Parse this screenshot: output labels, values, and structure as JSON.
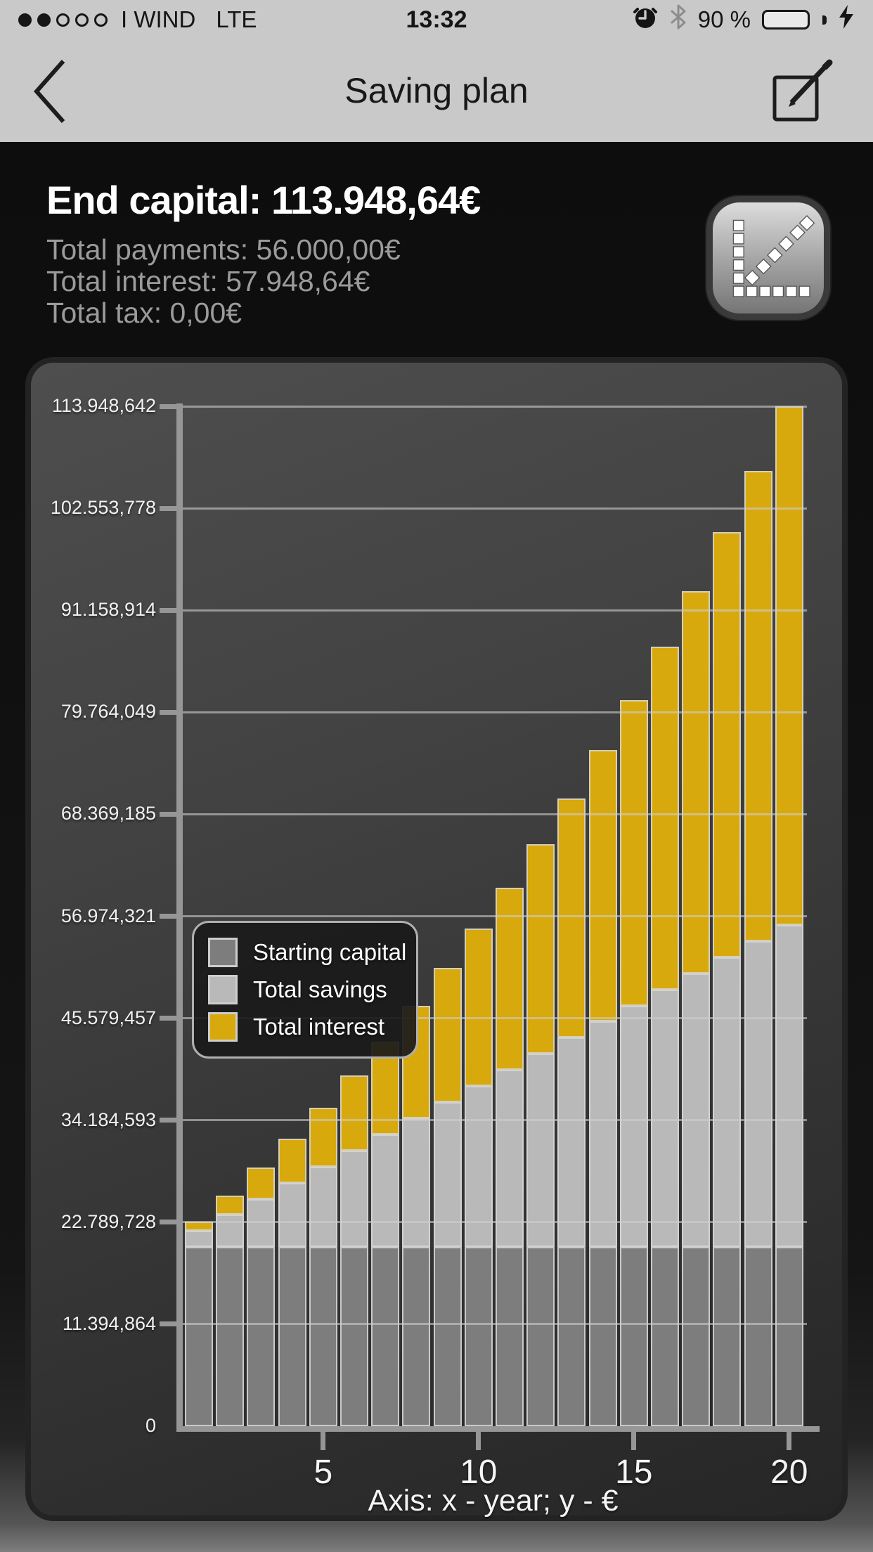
{
  "status_bar": {
    "signal_dots_filled": 2,
    "signal_dots_total": 5,
    "carrier": "I WIND",
    "network": "LTE",
    "time": "13:32",
    "battery_percent": "90 %",
    "battery_level": 0.9,
    "icons": [
      "alarm-clock-icon",
      "bluetooth-icon",
      "battery-icon",
      "charging-bolt-icon"
    ],
    "battery_color": "#58d35f"
  },
  "nav_bar": {
    "title": "Saving plan",
    "back_icon": "chevron-left-icon",
    "edit_icon": "compose-icon"
  },
  "summary": {
    "headline": "End capital: 113.948,64€",
    "rows": [
      "Total payments: 56.000,00€",
      "Total interest: 57.948,64€",
      "Total tax: 0,00€"
    ],
    "chart_button_icon": "axes-chart-icon"
  },
  "chart_data": {
    "type": "bar",
    "stacked": true,
    "title": "",
    "caption": "Axis: x - year; y - €",
    "grid": true,
    "legend_position": "middle-left",
    "categories": [
      1,
      2,
      3,
      4,
      5,
      6,
      7,
      8,
      9,
      10,
      11,
      12,
      13,
      14,
      15,
      16,
      17,
      18,
      19,
      20
    ],
    "series": [
      {
        "name": "Starting capital",
        "color": "#7d7d7d",
        "values": [
          20000,
          20000,
          20000,
          20000,
          20000,
          20000,
          20000,
          20000,
          20000,
          20000,
          20000,
          20000,
          20000,
          20000,
          20000,
          20000,
          20000,
          20000,
          20000,
          20000
        ]
      },
      {
        "name": "Total savings",
        "color": "#b9b9b9",
        "values": [
          1800,
          3600,
          5400,
          7200,
          9000,
          10800,
          12600,
          14400,
          16200,
          18000,
          19800,
          21600,
          23400,
          25200,
          27000,
          28800,
          30600,
          32400,
          34200,
          36000
        ]
      },
      {
        "name": "Total interest",
        "color": "#d8a90d",
        "values": [
          1016.6,
          2176.1,
          3486.3,
          4955.1,
          6589.6,
          8398.5,
          10391.5,
          12576.7,
          14964.7,
          17565.5,
          20390.2,
          23449.8,
          26756.6,
          30322.6,
          34161.8,
          38287.5,
          42714.7,
          47457.9,
          52533.8,
          57948.6
        ]
      }
    ],
    "end_of_year_totals": [
      22816.6,
      25776.1,
      28886.3,
      32155.1,
      35589.6,
      39198.5,
      42991.5,
      46976.7,
      51164.7,
      55565.5,
      60190.2,
      65049.8,
      70156.6,
      75522.6,
      81161.8,
      87087.5,
      93314.7,
      99857.9,
      106733.8,
      113948.6
    ],
    "y_axis": {
      "min": 0,
      "max": 113948.642,
      "tick_labels": [
        "113.948,642",
        "102.553,778",
        "91.158,914",
        "79.764,049",
        "68.369,185",
        "56.974,321",
        "45.579,457",
        "34.184,593",
        "22.789,728",
        "11.394,864",
        "0"
      ]
    },
    "x_axis": {
      "range": [
        1,
        20
      ],
      "ticks": [
        5,
        10,
        15,
        20
      ],
      "tick_labels": [
        "5",
        "10",
        "15",
        "20"
      ]
    }
  },
  "colors": {
    "chrome_gray": "#c9c9c9",
    "accent_yellow": "#d8a90d",
    "bar_light_gray": "#b9b9b9",
    "bar_dark_gray": "#7d7d7d",
    "axis_gray": "#969696",
    "battery_green": "#58d35f"
  }
}
